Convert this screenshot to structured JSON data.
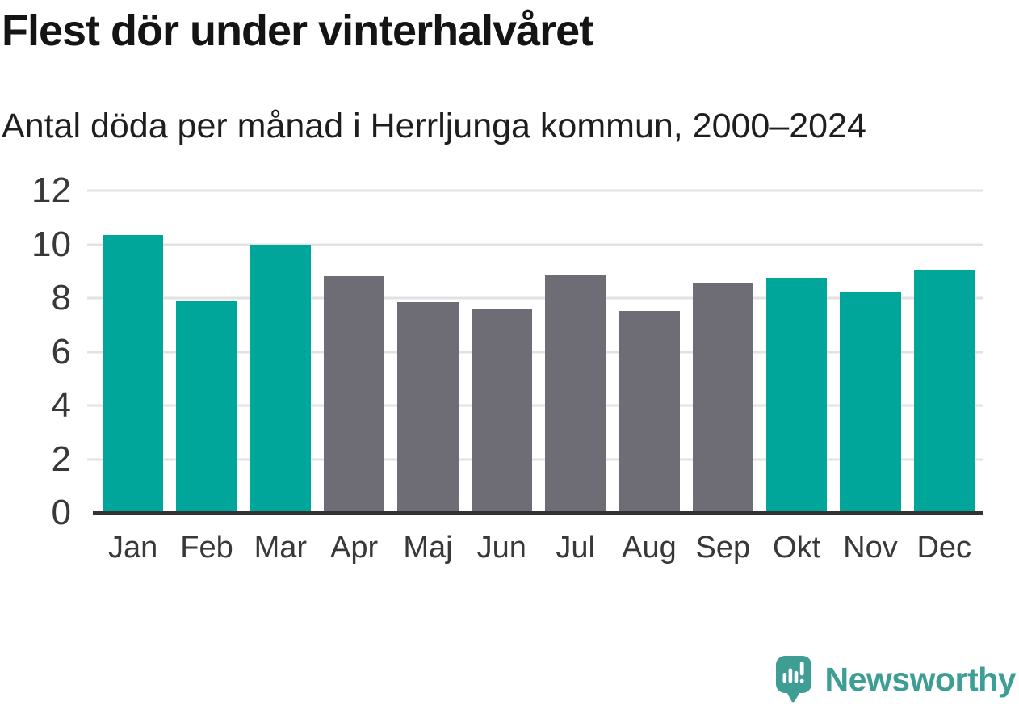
{
  "header": {
    "title": "Flest dör under vinterhalvåret",
    "subtitle": "Antal döda per månad i Herrljunga kommun, 2000–2024"
  },
  "chart_data": {
    "type": "bar",
    "title": "Flest dör under vinterhalvåret",
    "subtitle": "Antal döda per månad i Herrljunga kommun, 2000–2024",
    "categories": [
      "Jan",
      "Feb",
      "Mar",
      "Apr",
      "Maj",
      "Jun",
      "Jul",
      "Aug",
      "Sep",
      "Okt",
      "Nov",
      "Dec"
    ],
    "values": [
      10.36,
      7.88,
      10.0,
      8.8,
      7.84,
      7.6,
      8.88,
      7.52,
      8.56,
      8.76,
      8.24,
      9.04
    ],
    "bar_color_keys": [
      "teal",
      "teal",
      "teal",
      "gray",
      "gray",
      "gray",
      "gray",
      "gray",
      "gray",
      "teal",
      "teal",
      "teal"
    ],
    "colors": {
      "teal": "#00a69a",
      "gray": "#6e6d75"
    },
    "highlight_meaning": "winter-half-year months (Okt–Mar) in teal, summer months (Apr–Sep) in gray",
    "xlabel": "",
    "ylabel": "",
    "ylim": [
      0,
      12
    ],
    "yticks": [
      0,
      2,
      4,
      6,
      8,
      10,
      12
    ],
    "grid": true,
    "gridline_color": "#e2e2e2",
    "axis_line_color": "#333333",
    "legend": false
  },
  "footer": {
    "brand": "Newsworthy",
    "brand_color": "#3e9d95",
    "logo_icon": "newsworthy-speech-bubble-bar-chart-icon"
  }
}
